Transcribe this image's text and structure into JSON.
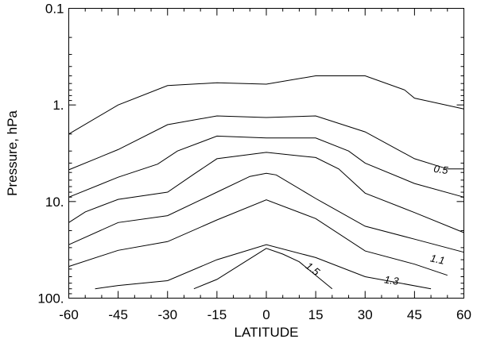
{
  "chart_data": {
    "type": "line",
    "xlabel": "LATITUDE",
    "ylabel": "Pressure, hPa",
    "xlim": [
      -60,
      60
    ],
    "ylim": [
      100,
      0.1
    ],
    "y_scale": "log",
    "x_ticks": [
      {
        "value": -60,
        "label": "-60"
      },
      {
        "value": -45,
        "label": "-45"
      },
      {
        "value": -30,
        "label": "-30"
      },
      {
        "value": -15,
        "label": "-15"
      },
      {
        "value": 0,
        "label": "0"
      },
      {
        "value": 15,
        "label": "15"
      },
      {
        "value": 30,
        "label": "30"
      },
      {
        "value": 45,
        "label": "45"
      },
      {
        "value": 60,
        "label": "60"
      }
    ],
    "y_ticks": [
      {
        "value": 0.1,
        "label": "0.1"
      },
      {
        "value": 1,
        "label": "1."
      },
      {
        "value": 10,
        "label": "10."
      },
      {
        "value": 100,
        "label": "100."
      }
    ],
    "grid": false,
    "legend": "none",
    "line_color": "#000000",
    "series": [
      {
        "x": [
          -60,
          -45,
          -30,
          -15,
          0,
          15,
          30,
          42,
          45,
          60
        ],
        "y": [
          2.0,
          1.0,
          0.63,
          0.59,
          0.61,
          0.5,
          0.5,
          0.7,
          0.85,
          1.1
        ]
      },
      {
        "x": [
          -60,
          -45,
          -30,
          -15,
          0,
          15,
          30,
          45,
          55,
          60
        ],
        "y": [
          4.7,
          2.9,
          1.6,
          1.3,
          1.35,
          1.3,
          1.9,
          3.6,
          4.6,
          4.6
        ]
      },
      {
        "x": [
          -60,
          -45,
          -33,
          -27,
          -15,
          0,
          15,
          25,
          30,
          45,
          60
        ],
        "y": [
          9.0,
          5.6,
          4.1,
          3.0,
          2.1,
          2.2,
          2.2,
          3.0,
          4.0,
          6.5,
          9.0
        ]
      },
      {
        "x": [
          -60,
          -55,
          -45,
          -30,
          -22,
          -15,
          0,
          15,
          22,
          30,
          45,
          60
        ],
        "y": [
          16.5,
          12.8,
          9.5,
          8.0,
          5.2,
          3.6,
          3.1,
          3.5,
          4.6,
          8.2,
          13.0,
          21.0
        ]
      },
      {
        "x": [
          -60,
          -45,
          -30,
          -15,
          -5,
          0,
          3,
          15,
          30,
          45,
          60
        ],
        "y": [
          28.0,
          16.5,
          14.0,
          8.0,
          5.5,
          5.1,
          5.3,
          9.3,
          18.0,
          24.5,
          33.5
        ]
      },
      {
        "x": [
          -60,
          -45,
          -30,
          -15,
          0,
          15,
          30,
          45,
          55
        ],
        "y": [
          47.0,
          32.0,
          26.0,
          15.5,
          9.6,
          15.0,
          32.5,
          44.5,
          58.0
        ]
      },
      {
        "x": [
          -52,
          -45,
          -30,
          -15,
          0,
          15,
          30,
          50
        ],
        "y": [
          80.0,
          74.0,
          66.0,
          40.0,
          28.0,
          38.0,
          60.0,
          80.0
        ]
      },
      {
        "x": [
          -22,
          -15,
          0,
          5,
          10,
          20
        ],
        "y": [
          80.0,
          64.0,
          30.5,
          35.0,
          42.0,
          80.0
        ]
      }
    ],
    "contour_labels": [
      {
        "text": "0.5",
        "x": 53,
        "y": 4.7,
        "angle": 8
      },
      {
        "text": "1.1",
        "x": 52,
        "y": 40.0,
        "angle": 12
      },
      {
        "text": "1.3",
        "x": 38,
        "y": 66.0,
        "angle": 8
      },
      {
        "text": "1.5",
        "x": 14,
        "y": 50.0,
        "angle": 38
      }
    ]
  }
}
